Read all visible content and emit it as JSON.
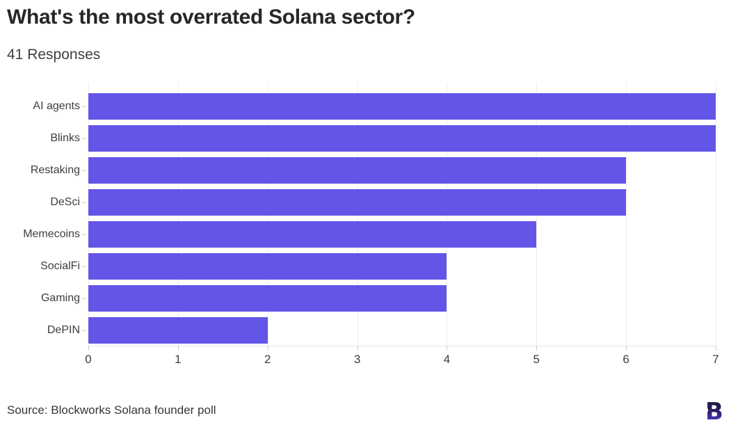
{
  "chart_data": {
    "type": "bar",
    "orientation": "horizontal",
    "title": "What's the most overrated Solana sector?",
    "subtitle": "41 Responses",
    "categories": [
      "AI agents",
      "Blinks",
      "Restaking",
      "DeSci",
      "Memecoins",
      "SocialFi",
      "Gaming",
      "DePIN"
    ],
    "values": [
      7,
      7,
      6,
      6,
      5,
      4,
      4,
      2
    ],
    "xlabel": "",
    "ylabel": "",
    "xlim": [
      0,
      7
    ],
    "x_ticks": [
      "0",
      "1",
      "2",
      "3",
      "4",
      "5",
      "6",
      "7"
    ],
    "grid": "vertical gridlines on",
    "legend": "none",
    "bar_color": "#6355e5"
  },
  "footer": {
    "source": "Source: Blockworks Solana founder poll",
    "logo": "blockworks-b-logo"
  },
  "colors": {
    "background": "#ffffff",
    "bar": "#6355e5",
    "title": "#262626",
    "subtitle": "#404040",
    "axis_text": "#3d3d3d",
    "gridline": "#ececec",
    "axis_line": "#e3e3e3",
    "tick": "#c9c9c9",
    "logo_gradient_top": "#171126",
    "logo_gradient_bottom": "#5b3ae0"
  }
}
